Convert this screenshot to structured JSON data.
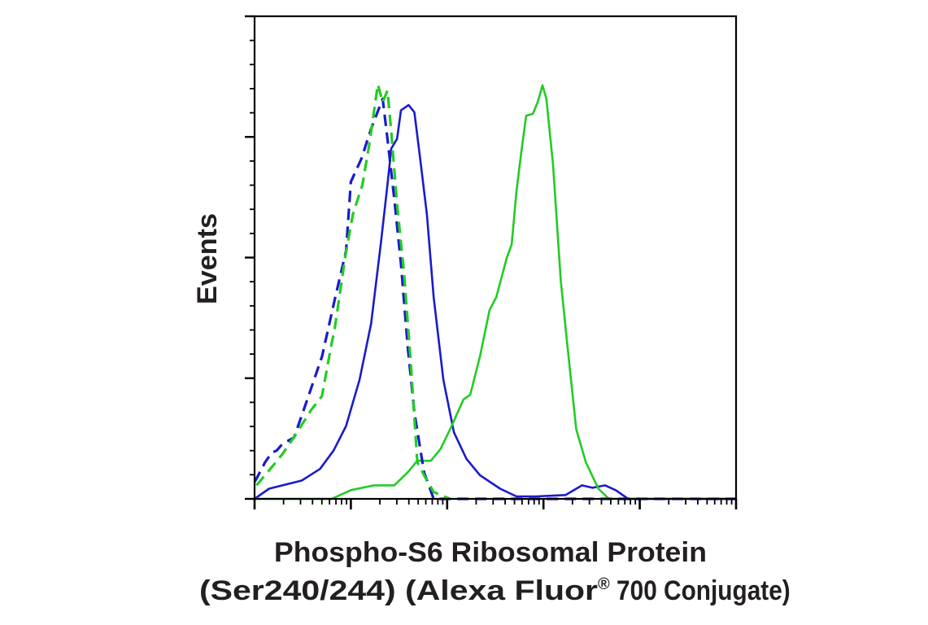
{
  "chart_data": {
    "type": "line",
    "subtype": "flow-cytometry-histogram",
    "title": "",
    "ylabel": "Events",
    "xlabel_line1": "Phospho-S6 Ribosomal Protein",
    "xlabel_line2_prefix": "(Ser240/244) (Alexa Fluor",
    "xlabel_line2_reg": "®",
    "xlabel_line2_suffix": " 700 Conjugate)",
    "x_scale": "log",
    "x_units": "log decades",
    "xlim": [
      0,
      5
    ],
    "ylabel_units": "percent of axis maximum",
    "ylim": [
      0,
      100
    ],
    "y_major_step": 25,
    "y_minor_step": 5,
    "grid": false,
    "legend": "none",
    "series": [
      {
        "name": "blue-solid",
        "color": "#1a1acd",
        "dashed": false,
        "points": [
          [
            0,
            0
          ],
          [
            0.15,
            2.1
          ],
          [
            0.29,
            2.8
          ],
          [
            0.49,
            3.8
          ],
          [
            0.68,
            6.2
          ],
          [
            0.82,
            10
          ],
          [
            0.95,
            15.1
          ],
          [
            1.09,
            24.7
          ],
          [
            1.21,
            36.3
          ],
          [
            1.31,
            52.7
          ],
          [
            1.38,
            65.1
          ],
          [
            1.42,
            72.6
          ],
          [
            1.48,
            74.6
          ],
          [
            1.52,
            80.5
          ],
          [
            1.6,
            81.6
          ],
          [
            1.66,
            80.1
          ],
          [
            1.72,
            70.5
          ],
          [
            1.79,
            58.9
          ],
          [
            1.86,
            41.8
          ],
          [
            1.96,
            24.7
          ],
          [
            2.07,
            13.8
          ],
          [
            2.2,
            8.3
          ],
          [
            2.34,
            4.9
          ],
          [
            2.55,
            2.1
          ],
          [
            2.72,
            0.5
          ],
          [
            2.92,
            0.5
          ],
          [
            3.23,
            0.8
          ],
          [
            3.4,
            2.8
          ],
          [
            3.51,
            2.3
          ],
          [
            3.64,
            2.8
          ],
          [
            3.75,
            1.8
          ],
          [
            3.88,
            0
          ],
          [
            5,
            0
          ]
        ]
      },
      {
        "name": "green-solid",
        "color": "#22cc22",
        "dashed": false,
        "points": [
          [
            0,
            0
          ],
          [
            0.8,
            0
          ],
          [
            1.0,
            1.8
          ],
          [
            1.24,
            2.8
          ],
          [
            1.45,
            2.8
          ],
          [
            1.59,
            5.5
          ],
          [
            1.69,
            7.9
          ],
          [
            1.83,
            7.9
          ],
          [
            1.93,
            10.3
          ],
          [
            2.03,
            14.4
          ],
          [
            2.17,
            20.6
          ],
          [
            2.24,
            21.6
          ],
          [
            2.34,
            29.5
          ],
          [
            2.44,
            39.1
          ],
          [
            2.51,
            41.8
          ],
          [
            2.62,
            50
          ],
          [
            2.67,
            52.7
          ],
          [
            2.72,
            63.7
          ],
          [
            2.77,
            71.9
          ],
          [
            2.82,
            79.4
          ],
          [
            2.89,
            79.8
          ],
          [
            2.94,
            82.2
          ],
          [
            2.99,
            85.7
          ],
          [
            3.03,
            82.9
          ],
          [
            3.1,
            69.2
          ],
          [
            3.18,
            45.2
          ],
          [
            3.25,
            31.5
          ],
          [
            3.34,
            14.4
          ],
          [
            3.44,
            7.6
          ],
          [
            3.57,
            2.1
          ],
          [
            3.68,
            0
          ],
          [
            5,
            0
          ]
        ]
      },
      {
        "name": "blue-dashed",
        "color": "#1a1acd",
        "dashed": true,
        "points": [
          [
            0,
            3.5
          ],
          [
            0.02,
            4.2
          ],
          [
            0.11,
            7.6
          ],
          [
            0.18,
            9.6
          ],
          [
            0.23,
            10
          ],
          [
            0.29,
            11.4
          ],
          [
            0.41,
            12.7
          ],
          [
            0.53,
            19.6
          ],
          [
            0.7,
            29.5
          ],
          [
            0.83,
            41.1
          ],
          [
            0.95,
            51.4
          ],
          [
            1.0,
            65.7
          ],
          [
            1.11,
            70.5
          ],
          [
            1.21,
            76.7
          ],
          [
            1.33,
            82.9
          ],
          [
            1.38,
            74.6
          ],
          [
            1.45,
            62.3
          ],
          [
            1.52,
            48.7
          ],
          [
            1.59,
            31.5
          ],
          [
            1.66,
            17.9
          ],
          [
            1.76,
            5.5
          ],
          [
            1.86,
            0
          ],
          [
            5,
            0
          ]
        ]
      },
      {
        "name": "green-dashed",
        "color": "#22cc22",
        "dashed": true,
        "points": [
          [
            0.02,
            2.8
          ],
          [
            0.18,
            6.6
          ],
          [
            0.29,
            9.3
          ],
          [
            0.42,
            13.1
          ],
          [
            0.59,
            18.5
          ],
          [
            0.7,
            21.3
          ],
          [
            0.8,
            32.2
          ],
          [
            0.83,
            35
          ],
          [
            0.94,
            50
          ],
          [
            1.02,
            58.9
          ],
          [
            1.12,
            65.1
          ],
          [
            1.19,
            73.3
          ],
          [
            1.28,
            85.9
          ],
          [
            1.33,
            82.2
          ],
          [
            1.38,
            84.6
          ],
          [
            1.42,
            76
          ],
          [
            1.48,
            61
          ],
          [
            1.55,
            47.3
          ],
          [
            1.62,
            28.8
          ],
          [
            1.69,
            7.6
          ],
          [
            1.76,
            4.9
          ],
          [
            1.86,
            1.4
          ],
          [
            2.03,
            0
          ]
        ]
      }
    ]
  }
}
